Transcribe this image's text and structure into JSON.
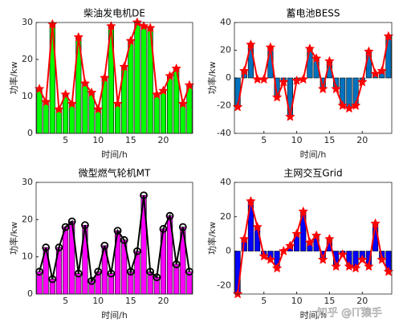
{
  "chart_data": [
    {
      "type": "bar_line",
      "title": "柴油发电机DE",
      "xlabel": "时间/h",
      "ylabel": "功率/kw",
      "x": [
        1,
        2,
        3,
        4,
        5,
        6,
        7,
        8,
        9,
        10,
        11,
        12,
        13,
        14,
        15,
        16,
        17,
        18,
        19,
        20,
        21,
        22,
        23,
        24
      ],
      "values": [
        12,
        8.5,
        29.5,
        6.5,
        10.5,
        8,
        26,
        13.5,
        11,
        6.5,
        15,
        29,
        8,
        18,
        25,
        30,
        29,
        28.5,
        10.5,
        11.5,
        15.5,
        17.5,
        8,
        13
      ],
      "xlim": [
        0.5,
        24.5
      ],
      "xticks": [
        5,
        10,
        15,
        20
      ],
      "ylim": [
        0,
        30
      ],
      "yticks": [
        0,
        10,
        20,
        30
      ],
      "bar_color": "#00ff00",
      "line_color": "#ff0000",
      "marker": "star"
    },
    {
      "type": "bar_line",
      "title": "蓄电池BESS",
      "xlabel": "时间/h",
      "ylabel": "功率/kw",
      "x": [
        1,
        2,
        3,
        4,
        5,
        6,
        7,
        8,
        9,
        10,
        11,
        12,
        13,
        14,
        15,
        16,
        17,
        18,
        19,
        20,
        21,
        22,
        23,
        24
      ],
      "values": [
        -21,
        5,
        24,
        -1,
        -1,
        22,
        -14,
        -3,
        -28,
        -2,
        -1,
        21,
        14,
        -8,
        12,
        -8,
        -20,
        -22,
        -20,
        -3,
        19,
        3,
        5,
        30
      ],
      "xlim": [
        0.5,
        24.5
      ],
      "xticks": [
        5,
        10,
        15,
        20
      ],
      "ylim": [
        -40,
        40
      ],
      "yticks": [
        -40,
        -20,
        0,
        20,
        40
      ],
      "bar_color": "#0072bd",
      "line_color": "#ff0000",
      "marker": "star"
    },
    {
      "type": "bar_line",
      "title": "微型燃气轮机MT",
      "xlabel": "时间/h",
      "ylabel": "功率/kw",
      "x": [
        1,
        2,
        3,
        4,
        5,
        6,
        7,
        8,
        9,
        10,
        11,
        12,
        13,
        14,
        15,
        16,
        17,
        18,
        19,
        20,
        21,
        22,
        23,
        24
      ],
      "values": [
        6,
        12.5,
        4,
        12.5,
        18,
        19.5,
        5.5,
        18.5,
        3.5,
        6,
        13,
        5.5,
        17,
        14.5,
        6,
        11.5,
        26.5,
        6,
        4.5,
        17.5,
        21,
        8,
        18,
        6
      ],
      "xlim": [
        0.5,
        24.5
      ],
      "xticks": [
        5,
        10,
        15,
        20
      ],
      "ylim": [
        0,
        30
      ],
      "yticks": [
        0,
        10,
        20,
        30
      ],
      "bar_color": "#ff00ff",
      "line_color": "#000000",
      "marker": "circle"
    },
    {
      "type": "bar_line",
      "title": "主网交互Grid",
      "xlabel": "时间/h",
      "ylabel": "功率/kw",
      "x": [
        1,
        2,
        3,
        4,
        5,
        6,
        7,
        8,
        9,
        10,
        11,
        12,
        13,
        14,
        15,
        16,
        17,
        18,
        19,
        20,
        21,
        22,
        23,
        24
      ],
      "values": [
        -25,
        7,
        29,
        14,
        -3,
        -5,
        -10,
        0,
        3,
        10,
        23,
        5,
        9,
        -5,
        7,
        -9,
        -2,
        -9,
        -10,
        -5,
        -9,
        16,
        -5,
        -12
      ],
      "xlim": [
        0.5,
        24.5
      ],
      "xticks": [
        5,
        10,
        15,
        20
      ],
      "ylim": [
        -25,
        40
      ],
      "yticks": [
        -20,
        0,
        20,
        40
      ],
      "bar_color": "#0000ff",
      "line_color": "#ff0000",
      "marker": "star"
    }
  ],
  "watermark": "知乎 @IT猿手"
}
